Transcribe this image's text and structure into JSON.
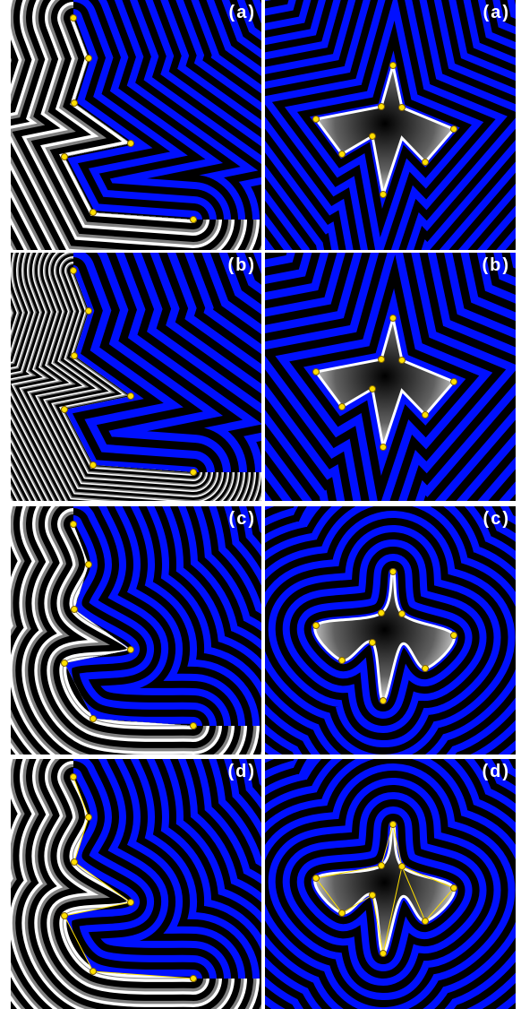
{
  "panels": [
    {
      "label": "(a)",
      "figure": "edge",
      "pattern": "sharp"
    },
    {
      "label": "(a)",
      "figure": "star",
      "pattern": "sharp"
    },
    {
      "label": "(b)",
      "figure": "edge",
      "pattern": "radial"
    },
    {
      "label": "(b)",
      "figure": "star",
      "pattern": "radial"
    },
    {
      "label": "(c)",
      "figure": "edge",
      "pattern": "smooth"
    },
    {
      "label": "(c)",
      "figure": "star",
      "pattern": "smooth"
    },
    {
      "label": "(d)",
      "figure": "edge",
      "pattern": "curved"
    },
    {
      "label": "(d)",
      "figure": "star",
      "pattern": "curved"
    }
  ],
  "colors": {
    "blue": "#0010ff",
    "dark": "#000000",
    "light": "#ffffff",
    "gray": "#808080",
    "point": "#ffe000",
    "point_outline": "#806000"
  }
}
